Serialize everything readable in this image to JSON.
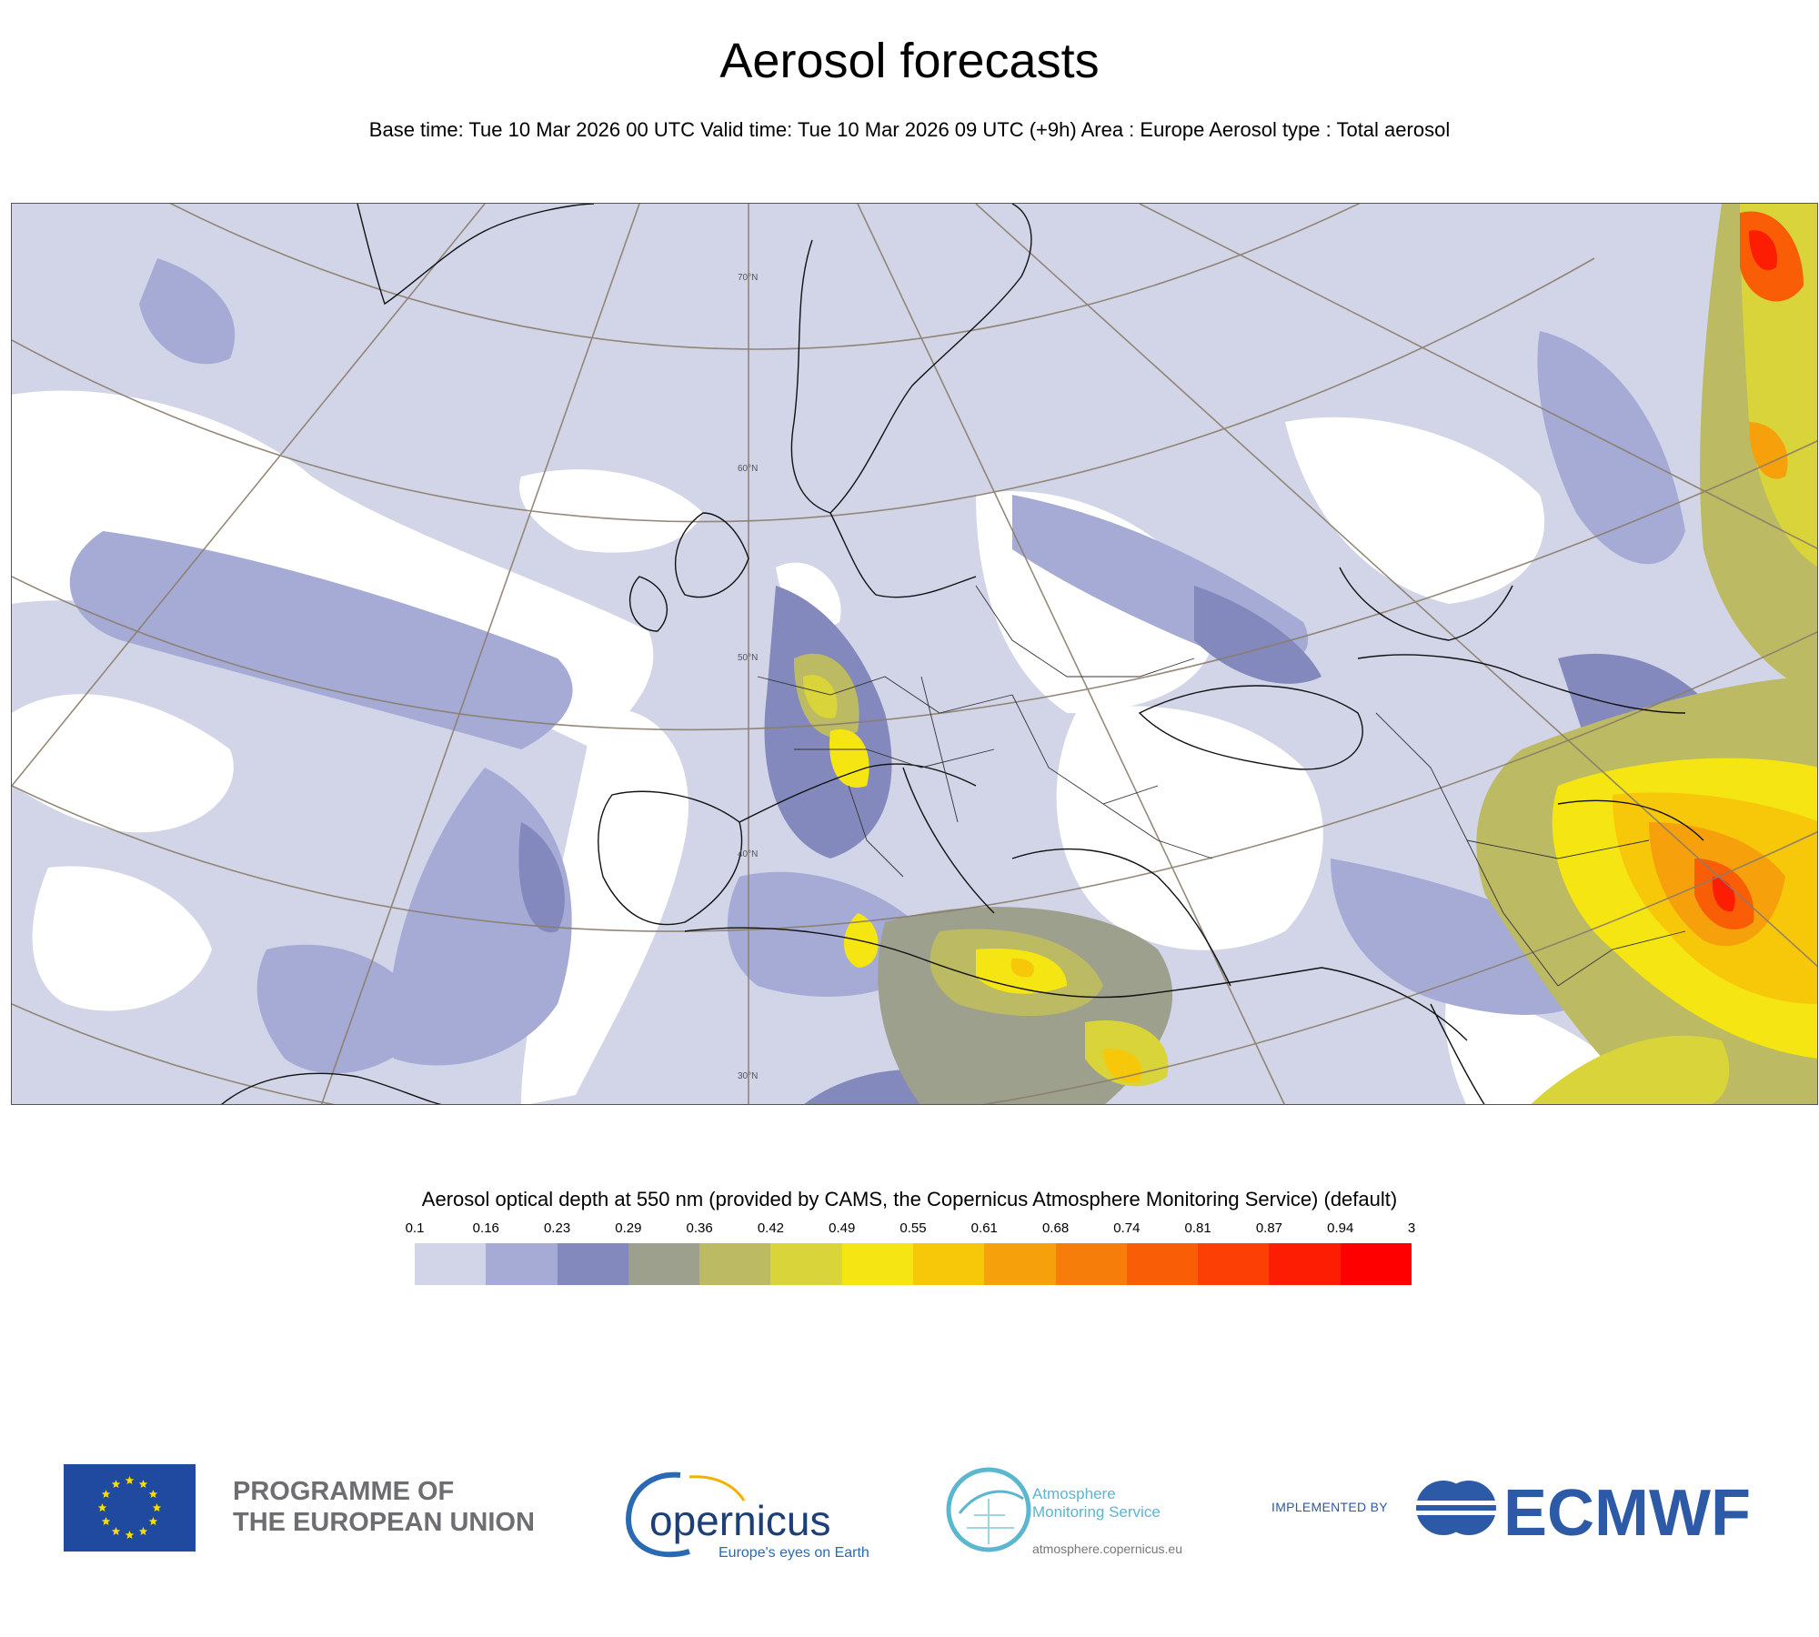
{
  "header": {
    "title": "Aerosol forecasts",
    "subtitle": "Base time: Tue 10 Mar 2026 00 UTC Valid time: Tue 10 Mar 2026 09 UTC (+9h) Area : Europe Aerosol type : Total aerosol"
  },
  "map": {
    "region": "Europe",
    "graticule_labels": [
      "70°N",
      "60°N",
      "50°N",
      "40°N",
      "30°N"
    ]
  },
  "legend": {
    "title": "Aerosol optical depth at 550 nm (provided by CAMS, the Copernicus Atmosphere Monitoring Service) (default)",
    "ticks": [
      "0.1",
      "0.16",
      "0.23",
      "0.29",
      "0.36",
      "0.42",
      "0.49",
      "0.55",
      "0.61",
      "0.68",
      "0.74",
      "0.81",
      "0.87",
      "0.94",
      "3"
    ],
    "colors": [
      "#d2d5e8",
      "#a6abd6",
      "#8389bc",
      "#9da08c",
      "#bcba62",
      "#d8d43a",
      "#f5e512",
      "#f7c70a",
      "#f6a10b",
      "#f77d0a",
      "#f95e07",
      "#fb3f05",
      "#fd1d02",
      "#ff0000"
    ]
  },
  "footer": {
    "eu_text_line1": "PROGRAMME OF",
    "eu_text_line2": "THE EUROPEAN UNION",
    "copernicus_name": "opernicus",
    "copernicus_tagline": "Europe's eyes on Earth",
    "cams_line1": "Atmosphere",
    "cams_line2": "Monitoring Service",
    "cams_url": "atmosphere.copernicus.eu",
    "implemented_by": "IMPLEMENTED BY",
    "ecmwf": "ECMWF"
  }
}
